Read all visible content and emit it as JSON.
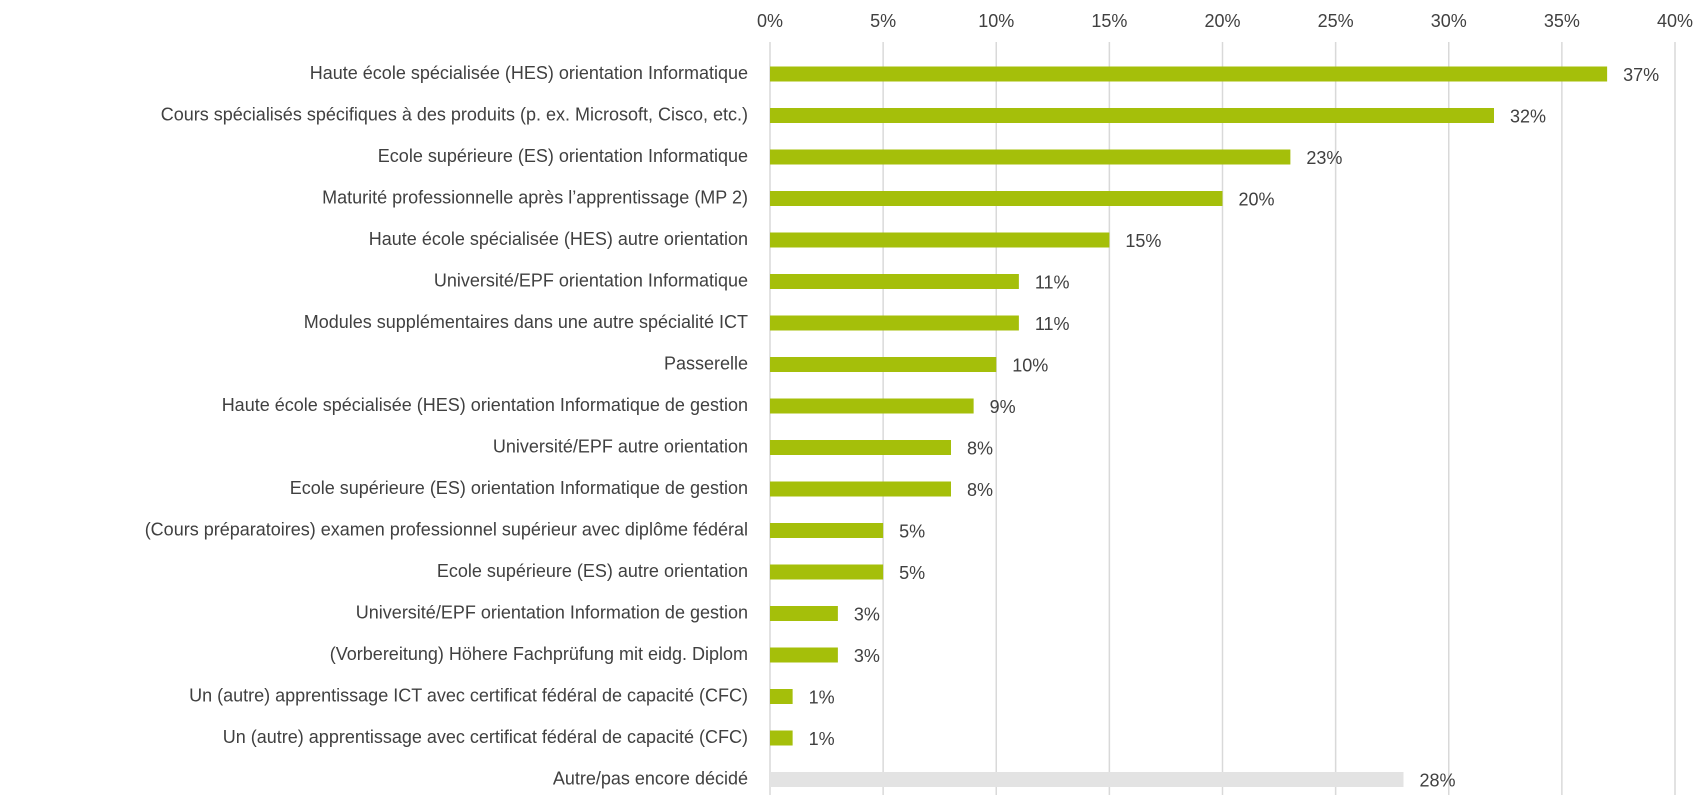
{
  "chart_data": {
    "type": "bar",
    "orientation": "horizontal",
    "categories": [
      "Haute école spécialisée (HES) orientation Informatique",
      "Cours spécialisés spécifiques à des produits (p. ex. Microsoft, Cisco, etc.)",
      "Ecole supérieure (ES) orientation Informatique",
      "Maturité professionnelle après l’apprentissage (MP 2)",
      "Haute école spécialisée (HES) autre orientation",
      "Université/EPF orientation Informatique",
      "Modules supplémentaires dans une autre spécialité ICT",
      "Passerelle",
      "Haute école spécialisée (HES) orientation Informatique de gestion",
      "Université/EPF autre orientation",
      "Ecole supérieure (ES) orientation Informatique de gestion",
      "(Cours préparatoires) examen professionnel supérieur avec diplôme fédéral",
      "Ecole supérieure (ES) autre orientation",
      "Université/EPF orientation Information de gestion",
      "(Vorbereitung) Höhere Fachprüfung mit eidg. Diplom",
      "Un (autre) apprentissage ICT avec certificat fédéral de capacité (CFC)",
      "Un (autre) apprentissage avec certificat fédéral de capacité (CFC)",
      "Autre/pas encore décidé"
    ],
    "values": [
      37,
      32,
      23,
      20,
      15,
      11,
      11,
      10,
      9,
      8,
      8,
      5,
      5,
      3,
      3,
      1,
      1,
      28
    ],
    "value_labels": [
      "37%",
      "32%",
      "23%",
      "20%",
      "15%",
      "11%",
      "11%",
      "10%",
      "9%",
      "8%",
      "8%",
      "5%",
      "5%",
      "3%",
      "3%",
      "1%",
      "1%",
      "28%"
    ],
    "colors": [
      "#a5bf0a",
      "#a5bf0a",
      "#a5bf0a",
      "#a5bf0a",
      "#a5bf0a",
      "#a5bf0a",
      "#a5bf0a",
      "#a5bf0a",
      "#a5bf0a",
      "#a5bf0a",
      "#a5bf0a",
      "#a5bf0a",
      "#a5bf0a",
      "#a5bf0a",
      "#a5bf0a",
      "#a5bf0a",
      "#a5bf0a",
      "#e3e3e3"
    ],
    "xlim": [
      0,
      40
    ],
    "xticks": [
      {
        "value": 0,
        "label": "0%"
      },
      {
        "value": 5,
        "label": "5%"
      },
      {
        "value": 10,
        "label": "10%"
      },
      {
        "value": 15,
        "label": "15%"
      },
      {
        "value": 20,
        "label": "20%"
      },
      {
        "value": 25,
        "label": "25%"
      },
      {
        "value": 30,
        "label": "30%"
      },
      {
        "value": 35,
        "label": "35%"
      },
      {
        "value": 40,
        "label": "40%"
      }
    ],
    "grid": true
  }
}
